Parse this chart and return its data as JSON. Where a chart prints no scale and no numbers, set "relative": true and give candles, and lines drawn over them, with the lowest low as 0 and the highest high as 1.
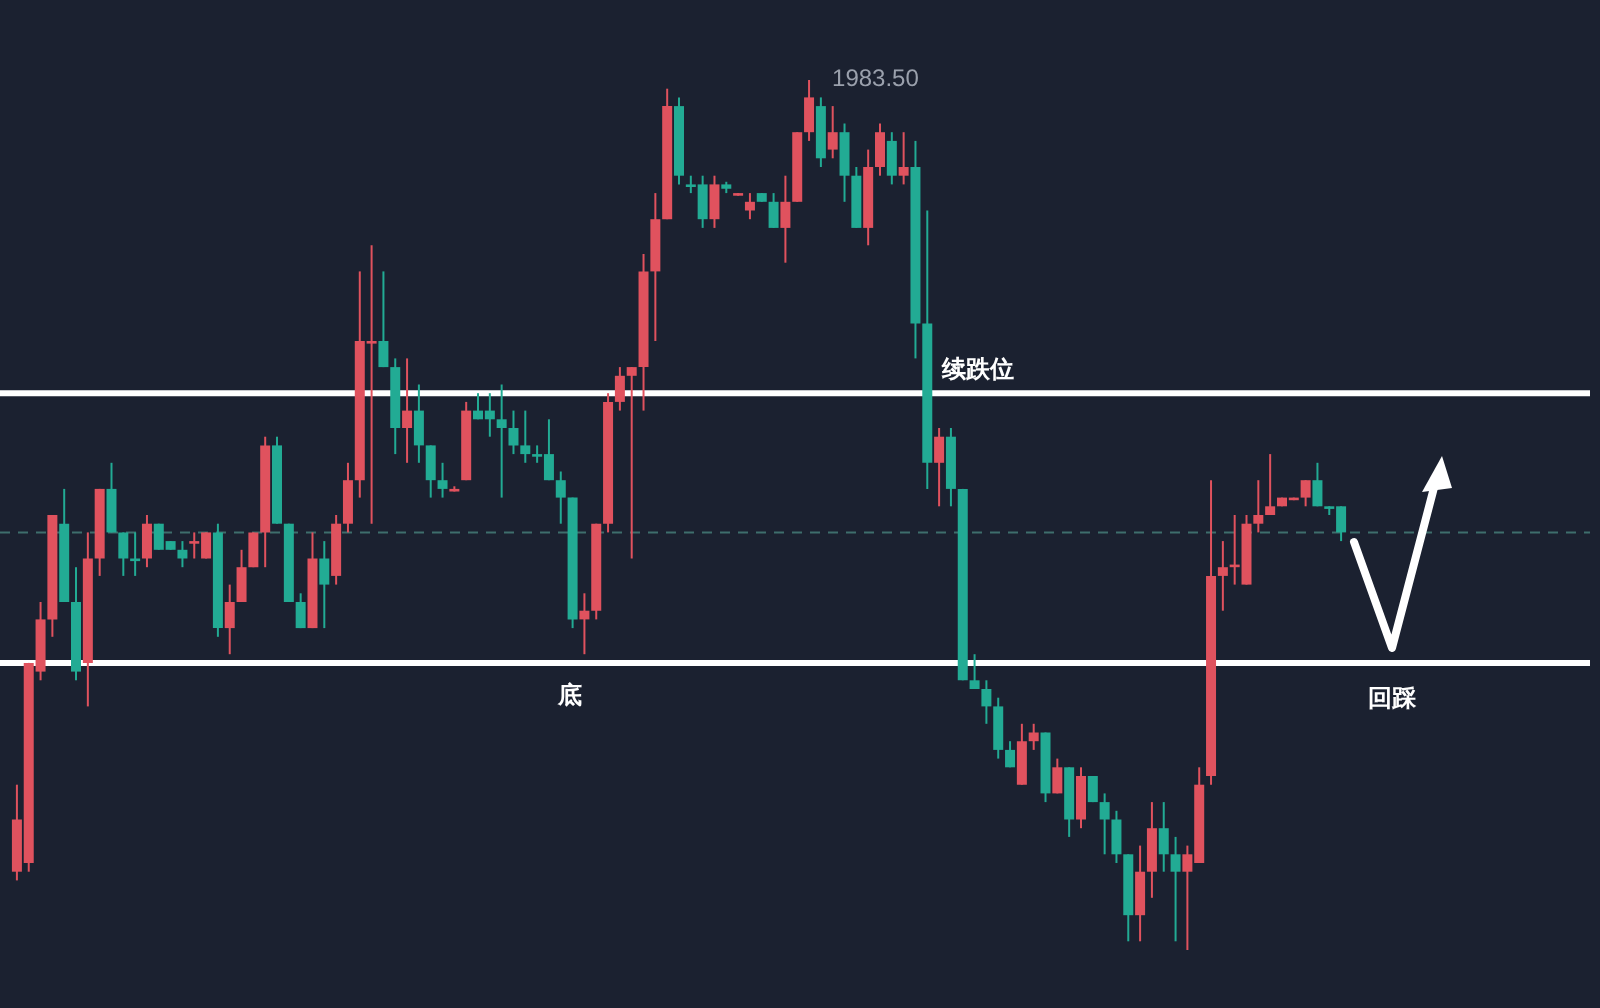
{
  "chart_data": {
    "type": "candlestick",
    "relative": true,
    "tick_labels": false,
    "categories": [
      null,
      null,
      null,
      null,
      null,
      null,
      null,
      null,
      null,
      null,
      null,
      null,
      null,
      null,
      null,
      null,
      null,
      null,
      null,
      null,
      null,
      null,
      null,
      null,
      null,
      null,
      null,
      null,
      null,
      null,
      null,
      null,
      null,
      null,
      null,
      null,
      null,
      null,
      null,
      null,
      null,
      null,
      null,
      null,
      null,
      null,
      null,
      null,
      null,
      null,
      null,
      null,
      null,
      null,
      null,
      null,
      null,
      null,
      null,
      null,
      null,
      null,
      null,
      null,
      null,
      null,
      null,
      null,
      null,
      null,
      null,
      null,
      null,
      null,
      null,
      null,
      null,
      null,
      null,
      null,
      null,
      null,
      null,
      null,
      null,
      null,
      null,
      null,
      null,
      null,
      null,
      null,
      null,
      null,
      null,
      null,
      null,
      null,
      null,
      null,
      null,
      null,
      null,
      null,
      null,
      null,
      null,
      null,
      null,
      null,
      null,
      null,
      null
    ],
    "ohlc": [
      [
        0.09,
        0.19,
        0.08,
        0.15
      ],
      [
        0.1,
        0.33,
        0.09,
        0.33
      ],
      [
        0.32,
        0.4,
        0.31,
        0.38
      ],
      [
        0.38,
        0.5,
        0.36,
        0.5
      ],
      [
        0.49,
        0.53,
        0.4,
        0.4
      ],
      [
        0.4,
        0.44,
        0.31,
        0.32
      ],
      [
        0.33,
        0.48,
        0.28,
        0.45
      ],
      [
        0.45,
        0.53,
        0.43,
        0.53
      ],
      [
        0.53,
        0.56,
        0.48,
        0.48
      ],
      [
        0.48,
        0.48,
        0.43,
        0.45
      ],
      [
        0.45,
        0.48,
        0.43,
        0.447
      ],
      [
        0.45,
        0.5,
        0.44,
        0.49
      ],
      [
        0.49,
        0.49,
        0.46,
        0.46
      ],
      [
        0.47,
        0.47,
        0.46,
        0.46
      ],
      [
        0.46,
        0.47,
        0.44,
        0.45
      ],
      [
        0.467,
        0.48,
        0.45,
        0.47
      ],
      [
        0.45,
        0.48,
        0.45,
        0.48
      ],
      [
        0.48,
        0.49,
        0.36,
        0.37
      ],
      [
        0.37,
        0.42,
        0.34,
        0.4
      ],
      [
        0.4,
        0.46,
        0.4,
        0.44
      ],
      [
        0.44,
        0.48,
        0.44,
        0.48
      ],
      [
        0.48,
        0.59,
        0.44,
        0.58
      ],
      [
        0.58,
        0.59,
        0.49,
        0.49
      ],
      [
        0.49,
        0.49,
        0.4,
        0.4
      ],
      [
        0.4,
        0.41,
        0.37,
        0.37
      ],
      [
        0.37,
        0.48,
        0.37,
        0.45
      ],
      [
        0.45,
        0.47,
        0.37,
        0.42
      ],
      [
        0.43,
        0.5,
        0.42,
        0.49
      ],
      [
        0.49,
        0.56,
        0.48,
        0.54
      ],
      [
        0.54,
        0.78,
        0.52,
        0.7
      ],
      [
        0.697,
        0.81,
        0.49,
        0.7
      ],
      [
        0.7,
        0.78,
        0.67,
        0.67
      ],
      [
        0.67,
        0.68,
        0.57,
        0.6
      ],
      [
        0.6,
        0.68,
        0.56,
        0.62
      ],
      [
        0.62,
        0.65,
        0.56,
        0.58
      ],
      [
        0.58,
        0.58,
        0.52,
        0.54
      ],
      [
        0.54,
        0.56,
        0.52,
        0.53
      ],
      [
        0.527,
        0.533,
        0.527,
        0.53
      ],
      [
        0.54,
        0.63,
        0.54,
        0.62
      ],
      [
        0.62,
        0.64,
        0.61,
        0.61
      ],
      [
        0.62,
        0.64,
        0.59,
        0.61
      ],
      [
        0.61,
        0.65,
        0.52,
        0.6
      ],
      [
        0.6,
        0.62,
        0.57,
        0.58
      ],
      [
        0.58,
        0.62,
        0.56,
        0.57
      ],
      [
        0.57,
        0.58,
        0.56,
        0.567
      ],
      [
        0.57,
        0.61,
        0.54,
        0.54
      ],
      [
        0.54,
        0.55,
        0.49,
        0.52
      ],
      [
        0.52,
        0.52,
        0.37,
        0.38
      ],
      [
        0.38,
        0.41,
        0.34,
        0.39
      ],
      [
        0.39,
        0.49,
        0.38,
        0.49
      ],
      [
        0.49,
        0.64,
        0.48,
        0.63
      ],
      [
        0.63,
        0.67,
        0.62,
        0.66
      ],
      [
        0.66,
        0.67,
        0.45,
        0.67
      ],
      [
        0.67,
        0.8,
        0.62,
        0.78
      ],
      [
        0.78,
        0.87,
        0.7,
        0.84
      ],
      [
        0.84,
        0.99,
        0.84,
        0.97
      ],
      [
        0.97,
        0.98,
        0.88,
        0.89
      ],
      [
        0.88,
        0.89,
        0.87,
        0.877
      ],
      [
        0.88,
        0.89,
        0.83,
        0.84
      ],
      [
        0.84,
        0.89,
        0.83,
        0.88
      ],
      [
        0.88,
        0.883,
        0.87,
        0.875
      ],
      [
        0.867,
        0.87,
        0.867,
        0.87
      ],
      [
        0.85,
        0.87,
        0.84,
        0.86
      ],
      [
        0.87,
        0.87,
        0.86,
        0.86
      ],
      [
        0.86,
        0.87,
        0.83,
        0.83
      ],
      [
        0.83,
        0.89,
        0.79,
        0.86
      ],
      [
        0.86,
        0.94,
        0.86,
        0.94
      ],
      [
        0.94,
        1,
        0.93,
        0.98
      ],
      [
        0.97,
        0.98,
        0.9,
        0.91
      ],
      [
        0.92,
        0.97,
        0.91,
        0.94
      ],
      [
        0.94,
        0.95,
        0.86,
        0.89
      ],
      [
        0.89,
        0.9,
        0.83,
        0.83
      ],
      [
        0.83,
        0.92,
        0.81,
        0.9
      ],
      [
        0.9,
        0.95,
        0.89,
        0.94
      ],
      [
        0.93,
        0.94,
        0.88,
        0.89
      ],
      [
        0.89,
        0.94,
        0.88,
        0.9
      ],
      [
        0.9,
        0.93,
        0.68,
        0.72
      ],
      [
        0.72,
        0.85,
        0.53,
        0.56
      ],
      [
        0.56,
        0.6,
        0.51,
        0.59
      ],
      [
        0.59,
        0.6,
        0.51,
        0.53
      ],
      [
        0.53,
        0.53,
        0.31,
        0.31
      ],
      [
        0.31,
        0.34,
        0.3,
        0.3
      ],
      [
        0.3,
        0.31,
        0.26,
        0.28
      ],
      [
        0.28,
        0.29,
        0.22,
        0.23
      ],
      [
        0.23,
        0.24,
        0.21,
        0.21
      ],
      [
        0.19,
        0.26,
        0.19,
        0.24
      ],
      [
        0.24,
        0.26,
        0.23,
        0.25
      ],
      [
        0.25,
        0.25,
        0.17,
        0.18
      ],
      [
        0.18,
        0.22,
        0.18,
        0.21
      ],
      [
        0.21,
        0.21,
        0.13,
        0.15
      ],
      [
        0.15,
        0.21,
        0.14,
        0.2
      ],
      [
        0.2,
        0.2,
        0.17,
        0.17
      ],
      [
        0.17,
        0.18,
        0.11,
        0.15
      ],
      [
        0.15,
        0.16,
        0.1,
        0.11
      ],
      [
        0.11,
        0.11,
        0.01,
        0.04
      ],
      [
        0.04,
        0.12,
        0.01,
        0.09
      ],
      [
        0.09,
        0.17,
        0.06,
        0.14
      ],
      [
        0.14,
        0.17,
        0.09,
        0.11
      ],
      [
        0.11,
        0.13,
        0.01,
        0.09
      ],
      [
        0.09,
        0.12,
        0,
        0.11
      ],
      [
        0.1,
        0.21,
        0.1,
        0.19
      ],
      [
        0.2,
        0.54,
        0.19,
        0.43
      ],
      [
        0.43,
        0.47,
        0.39,
        0.44
      ],
      [
        0.44,
        0.5,
        0.42,
        0.443
      ],
      [
        0.42,
        0.5,
        0.42,
        0.49
      ],
      [
        0.49,
        0.54,
        0.48,
        0.5
      ],
      [
        0.5,
        0.57,
        0.5,
        0.51
      ],
      [
        0.51,
        0.52,
        0.51,
        0.52
      ],
      [
        0.517,
        0.52,
        0.517,
        0.52
      ],
      [
        0.52,
        0.54,
        0.51,
        0.54
      ],
      [
        0.54,
        0.56,
        0.51,
        0.51
      ],
      [
        0.51,
        0.51,
        0.5,
        0.507
      ],
      [
        0.51,
        0.51,
        0.47,
        0.48
      ]
    ],
    "colors": [
      "#e0525e",
      "#e0525e",
      "#e0525e",
      "#e0525e",
      "#22ab94",
      "#22ab94",
      "#e0525e",
      "#e0525e",
      "#22ab94",
      "#22ab94",
      "#22ab94",
      "#e0525e",
      "#22ab94",
      "#22ab94",
      "#22ab94",
      "#e0525e",
      "#e0525e",
      "#22ab94",
      "#e0525e",
      "#e0525e",
      "#e0525e",
      "#e0525e",
      "#22ab94",
      "#22ab94",
      "#22ab94",
      "#e0525e",
      "#22ab94",
      "#e0525e",
      "#e0525e",
      "#e0525e",
      "#e0525e",
      "#22ab94",
      "#22ab94",
      "#e0525e",
      "#22ab94",
      "#22ab94",
      "#22ab94",
      "#e0525e",
      "#e0525e",
      "#22ab94",
      "#22ab94",
      "#22ab94",
      "#22ab94",
      "#22ab94",
      "#22ab94",
      "#22ab94",
      "#22ab94",
      "#22ab94",
      "#e0525e",
      "#e0525e",
      "#e0525e",
      "#e0525e",
      "#e0525e",
      "#e0525e",
      "#e0525e",
      "#e0525e",
      "#22ab94",
      "#22ab94",
      "#22ab94",
      "#e0525e",
      "#22ab94",
      "#e0525e",
      "#e0525e",
      "#22ab94",
      "#22ab94",
      "#e0525e",
      "#e0525e",
      "#e0525e",
      "#22ab94",
      "#e0525e",
      "#22ab94",
      "#22ab94",
      "#e0525e",
      "#e0525e",
      "#22ab94",
      "#e0525e",
      "#22ab94",
      "#22ab94",
      "#e0525e",
      "#22ab94",
      "#22ab94",
      "#22ab94",
      "#22ab94",
      "#22ab94",
      "#22ab94",
      "#e0525e",
      "#e0525e",
      "#22ab94",
      "#e0525e",
      "#22ab94",
      "#e0525e",
      "#22ab94",
      "#22ab94",
      "#22ab94",
      "#22ab94",
      "#e0525e",
      "#e0525e",
      "#22ab94",
      "#22ab94",
      "#e0525e",
      "#e0525e",
      "#e0525e",
      "#e0525e",
      "#e0525e",
      "#e0525e",
      "#e0525e",
      "#e0525e",
      "#e0525e",
      "#e0525e",
      "#e0525e",
      "#22ab94",
      "#22ab94",
      "#22ab94"
    ],
    "ref_lines": [
      {
        "axis": "y",
        "value": 0.64,
        "label": "续跌位",
        "color": "#ffffff"
      },
      {
        "axis": "y",
        "value": 0.33,
        "label": "底",
        "color": "#ffffff"
      },
      {
        "axis": "y",
        "value": 0.48,
        "label": null,
        "color": "#3e6e6c",
        "line_style": "dashed"
      }
    ],
    "annotations": [
      "1983.50",
      "回踩"
    ]
  }
}
